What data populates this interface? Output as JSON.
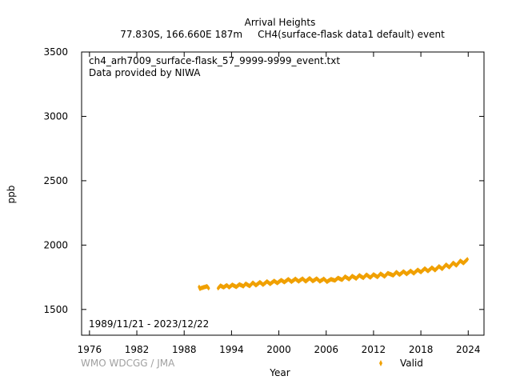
{
  "chart_data": {
    "type": "scatter",
    "title": "Arrival Heights",
    "subtitle": "77.830S, 166.660E 187m     CH4(surface-flask data1 default) event",
    "xlabel": "Year",
    "ylabel": "ppb",
    "xlim": [
      1975,
      2026
    ],
    "ylim": [
      1300,
      3500
    ],
    "x_ticks": [
      "1976",
      "1982",
      "1988",
      "1994",
      "2000",
      "2006",
      "2012",
      "2018",
      "2024"
    ],
    "y_ticks": [
      "1500",
      "2000",
      "2500",
      "3000",
      "3500"
    ],
    "annotations": [
      "ch4_arh7009_surface-flask_57_9999-9999_event.txt",
      "Data provided by NIWA"
    ],
    "date_range": "1989/11/21 - 2023/12/22",
    "credit": "WMO WDCGG / JMA",
    "legend": {
      "placement": "bottom-right",
      "label": "Valid",
      "marker": "diamond"
    },
    "series_color": "#f0a000",
    "series": [
      {
        "x": [
          1989.9,
          1990.0,
          1990.1,
          1990.9,
          1991.1,
          1992.3,
          1992.6,
          1993.0,
          1993.4,
          1993.7,
          1994.1,
          1994.6,
          1995.0,
          1995.5,
          1995.8,
          1996.3,
          1996.7,
          1997.1,
          1997.6,
          1998.0,
          1998.5,
          1998.9,
          1999.4,
          1999.8,
          2000.3,
          2000.7,
          2001.2,
          2001.6,
          2002.1,
          2002.5,
          2003.0,
          2003.4,
          2003.9,
          2004.3,
          2004.8,
          2005.2,
          2005.7,
          2006.1,
          2006.6,
          2007.1,
          2007.5,
          2008.0,
          2008.4,
          2008.9,
          2009.3,
          2009.8,
          2010.2,
          2010.7,
          2011.1,
          2011.6,
          2012.0,
          2012.5,
          2012.9,
          2013.4,
          2013.8,
          2014.5,
          2014.9,
          2015.3,
          2015.8,
          2016.2,
          2016.7,
          2017.1,
          2017.6,
          2018.0,
          2018.5,
          2018.9,
          2019.4,
          2019.8,
          2020.3,
          2020.7,
          2021.2,
          2021.6,
          2022.1,
          2022.5,
          2023.0,
          2023.4,
          2023.9
        ],
        "y": [
          1675,
          1660,
          1665,
          1680,
          1665,
          1665,
          1685,
          1672,
          1688,
          1672,
          1692,
          1675,
          1695,
          1680,
          1700,
          1682,
          1708,
          1688,
          1712,
          1692,
          1718,
          1698,
          1722,
          1705,
          1728,
          1712,
          1735,
          1715,
          1738,
          1718,
          1740,
          1718,
          1742,
          1720,
          1740,
          1718,
          1738,
          1715,
          1735,
          1725,
          1745,
          1730,
          1755,
          1735,
          1760,
          1740,
          1765,
          1745,
          1770,
          1748,
          1772,
          1752,
          1778,
          1756,
          1782,
          1765,
          1790,
          1770,
          1795,
          1775,
          1800,
          1780,
          1808,
          1790,
          1818,
          1798,
          1825,
          1805,
          1835,
          1815,
          1848,
          1828,
          1862,
          1842,
          1878,
          1860,
          1890
        ]
      }
    ]
  }
}
